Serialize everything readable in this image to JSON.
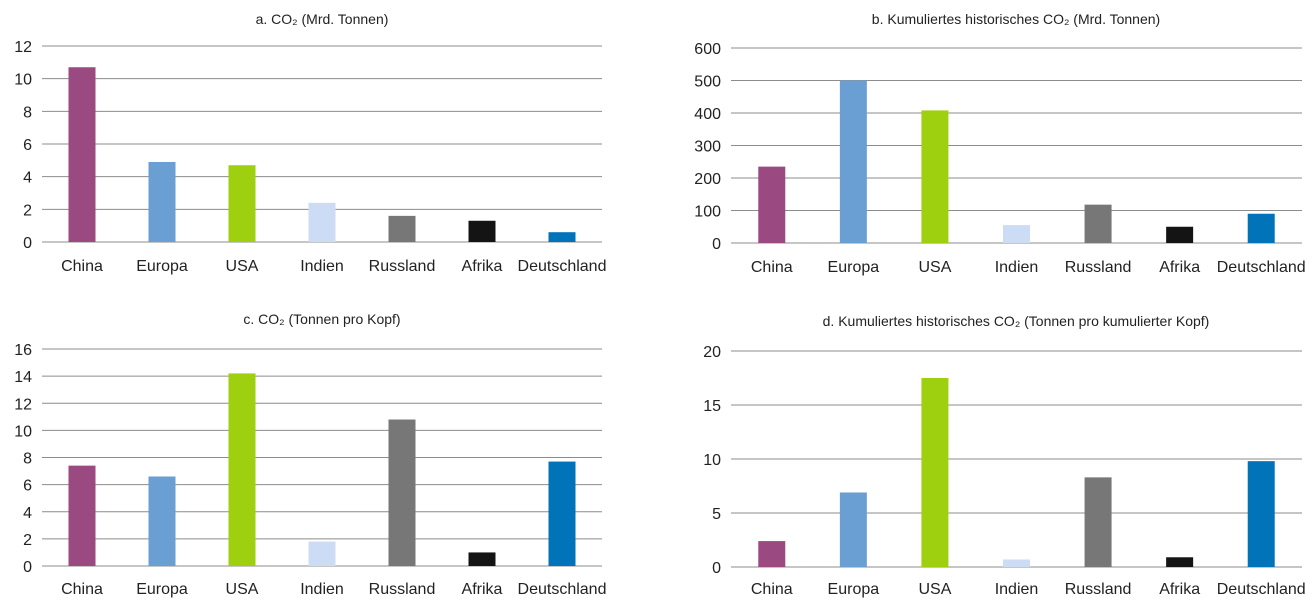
{
  "chart_data": [
    {
      "type": "bar",
      "title": "a. CO₂ (Mrd. Tonnen)",
      "categories": [
        "China",
        "Europa",
        "USA",
        "Indien",
        "Russland",
        "Afrika",
        "Deutschland"
      ],
      "values": [
        10.7,
        4.9,
        4.7,
        2.4,
        1.6,
        1.3,
        0.6
      ],
      "ylim": [
        0,
        12
      ],
      "yticks": [
        "0",
        "2",
        "4",
        "6",
        "8",
        "10",
        "12"
      ],
      "grid": true
    },
    {
      "type": "bar",
      "title": "b. Kumuliertes historisches CO₂ (Mrd. Tonnen)",
      "categories": [
        "China",
        "Europa",
        "USA",
        "Indien",
        "Russland",
        "Afrika",
        "Deutschland"
      ],
      "values": [
        235,
        500,
        408,
        55,
        118,
        50,
        90
      ],
      "ylim": [
        0,
        600
      ],
      "yticks": [
        "0",
        "100",
        "200",
        "300",
        "400",
        "500",
        "600"
      ],
      "grid": true
    },
    {
      "type": "bar",
      "title": "c. CO₂ (Tonnen pro Kopf)",
      "categories": [
        "China",
        "Europa",
        "USA",
        "Indien",
        "Russland",
        "Afrika",
        "Deutschland"
      ],
      "values": [
        7.4,
        6.6,
        14.2,
        1.8,
        10.8,
        1.0,
        7.7
      ],
      "ylim": [
        0,
        16
      ],
      "yticks": [
        "0",
        "2",
        "4",
        "6",
        "8",
        "10",
        "12",
        "14",
        "16"
      ],
      "grid": true
    },
    {
      "type": "bar",
      "title": "d. Kumuliertes historisches CO₂ (Tonnen pro kumulierter Kopf)",
      "categories": [
        "China",
        "Europa",
        "USA",
        "Indien",
        "Russland",
        "Afrika",
        "Deutschland"
      ],
      "values": [
        2.4,
        6.9,
        17.5,
        0.7,
        8.3,
        0.9,
        9.8
      ],
      "ylim": [
        0,
        20
      ],
      "yticks": [
        "0",
        "5",
        "10",
        "15",
        "20"
      ],
      "grid": true
    }
  ],
  "colors": [
    "#9a4a80",
    "#6a9fd3",
    "#9ed00f",
    "#ccdcf5",
    "#777777",
    "#141414",
    "#0073b9"
  ]
}
